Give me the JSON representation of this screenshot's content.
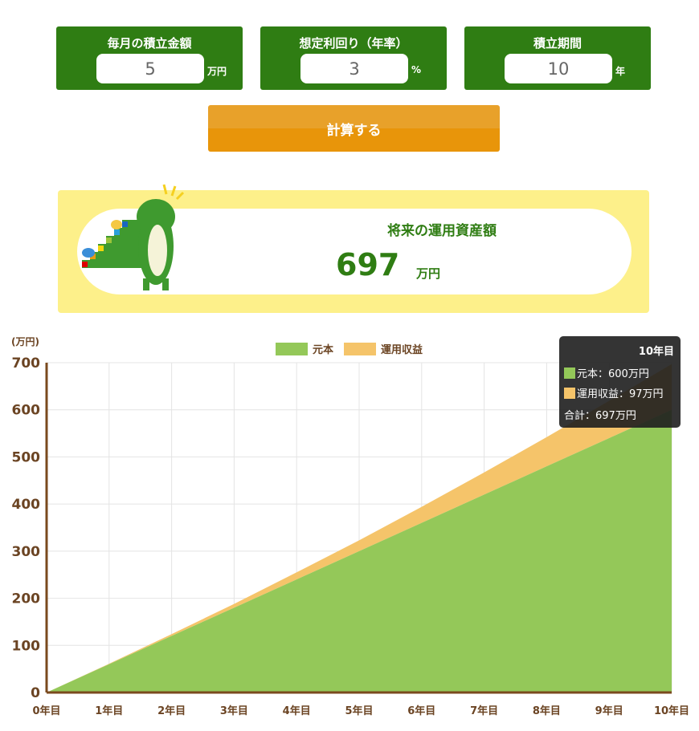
{
  "inputs": [
    {
      "label": "毎月の積立金額",
      "value": "5",
      "unit": "万円"
    },
    {
      "label": "想定利回り（年率）",
      "value": "3",
      "unit": "%"
    },
    {
      "label": "積立期間",
      "value": "10",
      "unit": "年"
    }
  ],
  "calc_button": "計算する",
  "result": {
    "title": "将来の運用資産額",
    "value": "697",
    "unit": "万円"
  },
  "colors": {
    "green": "#2f7d13",
    "principal": "#94c859",
    "profit": "#f5c46a",
    "axis": "#7a4a1e",
    "button": "#e8950a",
    "result_bg": "#fdf08a"
  },
  "tooltip": {
    "title": "10年目",
    "principal": "元本：600万円",
    "profit": "運用収益：97万円",
    "total": "合計：697万円"
  },
  "chart_data": {
    "type": "area",
    "stacked": true,
    "ylabel": "(万円)",
    "ylim": [
      0,
      700
    ],
    "yticks": [
      "0",
      "100",
      "200",
      "300",
      "400",
      "500",
      "600",
      "700"
    ],
    "categories": [
      "0年目",
      "1年目",
      "2年目",
      "3年目",
      "4年目",
      "5年目",
      "6年目",
      "7年目",
      "8年目",
      "9年目",
      "10年目"
    ],
    "series": [
      {
        "name": "元本",
        "values": [
          0,
          60,
          120,
          180,
          240,
          300,
          360,
          420,
          480,
          540,
          600
        ]
      },
      {
        "name": "運用収益",
        "values": [
          0,
          1,
          4,
          8,
          15,
          23,
          34,
          47,
          62,
          79,
          97
        ]
      }
    ],
    "grid": true,
    "legend": "top"
  }
}
